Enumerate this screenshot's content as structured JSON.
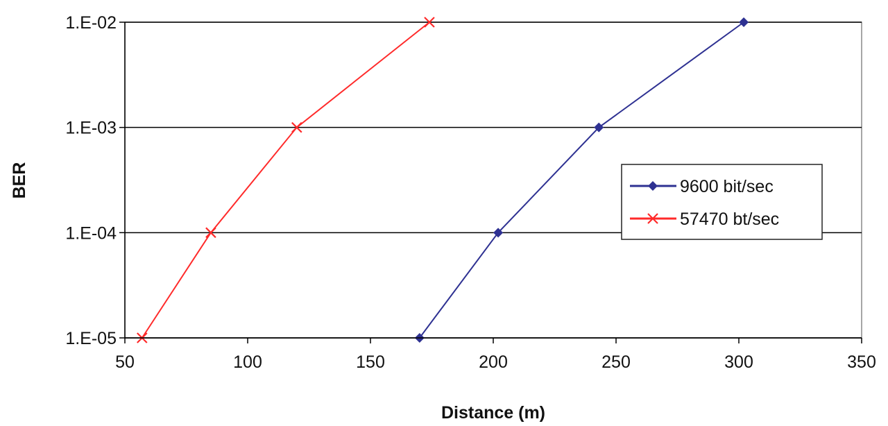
{
  "chart_data": {
    "type": "line",
    "title": "",
    "xlabel": "Distance (m)",
    "ylabel": "BER",
    "xlim": [
      50,
      350
    ],
    "ylim": [
      1e-05,
      0.01
    ],
    "yscale": "log",
    "xticks": [
      "50",
      "100",
      "150",
      "200",
      "250",
      "300",
      "350"
    ],
    "xtick_values": [
      50,
      100,
      150,
      200,
      250,
      300,
      350
    ],
    "yticks": [
      "1.E-02",
      "1.E-03",
      "1.E-04",
      "1.E-05"
    ],
    "ytick_values": [
      0.01,
      0.001,
      0.0001,
      1e-05
    ],
    "grid": "horizontal",
    "legend_position": "right",
    "series": [
      {
        "name": "9600 bit/sec",
        "color": "#2e3192",
        "marker": "diamond",
        "x": [
          170,
          202,
          243,
          302
        ],
        "y": [
          1e-05,
          0.0001,
          0.001,
          0.01
        ]
      },
      {
        "name": "57470 bt/sec",
        "color": "#ff2a2a",
        "marker": "x",
        "x": [
          57,
          85,
          120,
          174
        ],
        "y": [
          1e-05,
          0.0001,
          0.001,
          0.01
        ]
      }
    ]
  }
}
